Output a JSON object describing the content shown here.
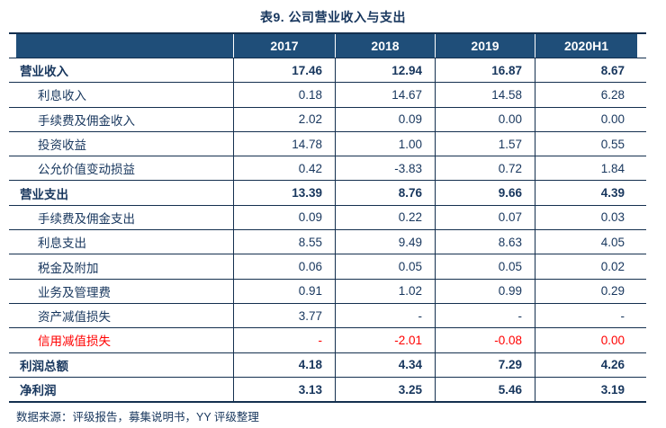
{
  "title": "表9. 公司营业收入与支出",
  "table": {
    "columns": [
      "2017",
      "2018",
      "2019",
      "2020H1"
    ],
    "rows": [
      {
        "label": "营业收入",
        "values": [
          "17.46",
          "12.94",
          "16.87",
          "8.67"
        ],
        "style": "section"
      },
      {
        "label": "利息收入",
        "values": [
          "0.18",
          "14.67",
          "14.58",
          "6.28"
        ],
        "style": "sub"
      },
      {
        "label": "手续费及佣金收入",
        "values": [
          "2.02",
          "0.09",
          "0.00",
          "0.00"
        ],
        "style": "sub"
      },
      {
        "label": "投资收益",
        "values": [
          "14.78",
          "1.00",
          "1.57",
          "0.55"
        ],
        "style": "sub"
      },
      {
        "label": "公允价值变动损益",
        "values": [
          "0.42",
          "-3.83",
          "0.72",
          "1.84"
        ],
        "style": "sub"
      },
      {
        "label": "营业支出",
        "values": [
          "13.39",
          "8.76",
          "9.66",
          "4.39"
        ],
        "style": "section"
      },
      {
        "label": "手续费及佣金支出",
        "values": [
          "0.09",
          "0.22",
          "0.07",
          "0.03"
        ],
        "style": "sub"
      },
      {
        "label": "利息支出",
        "values": [
          "8.55",
          "9.49",
          "8.63",
          "4.05"
        ],
        "style": "sub"
      },
      {
        "label": "税金及附加",
        "values": [
          "0.06",
          "0.05",
          "0.05",
          "0.02"
        ],
        "style": "sub"
      },
      {
        "label": "业务及管理费",
        "values": [
          "0.91",
          "1.02",
          "0.99",
          "0.29"
        ],
        "style": "sub"
      },
      {
        "label": "资产减值损失",
        "values": [
          "3.77",
          "-",
          "-",
          "-"
        ],
        "style": "sub"
      },
      {
        "label": "信用减值损失",
        "values": [
          "-",
          "-2.01",
          "-0.08",
          "0.00"
        ],
        "style": "sub-red"
      },
      {
        "label": "利润总额",
        "values": [
          "4.18",
          "4.34",
          "7.29",
          "4.26"
        ],
        "style": "section"
      },
      {
        "label": "净利润",
        "values": [
          "3.13",
          "3.25",
          "5.46",
          "3.19"
        ],
        "style": "section"
      }
    ]
  },
  "footer": {
    "source_note": "数据来源：评级报告，募集说明书，YY 评级整理"
  },
  "colors": {
    "header_bg": "#1F4E79",
    "header_text": "#FFFFFF",
    "body_text": "#17365D",
    "highlight_red": "#FF0000",
    "rule": "#14304F"
  }
}
